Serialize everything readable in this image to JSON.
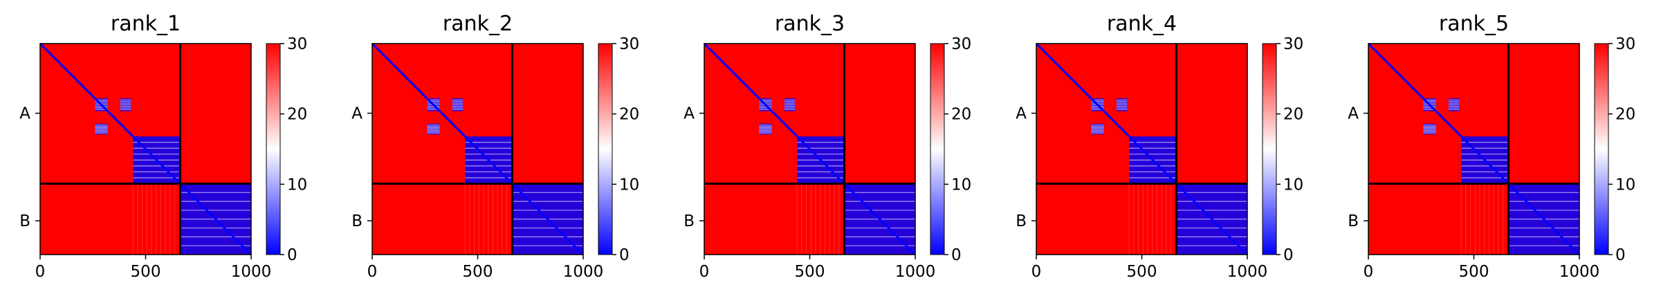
{
  "chart_data": {
    "type": "heatmap",
    "figure_panels": [
      {
        "title": "rank_1"
      },
      {
        "title": "rank_2"
      },
      {
        "title": "rank_3"
      },
      {
        "title": "rank_4"
      },
      {
        "title": "rank_5"
      }
    ],
    "xlim": [
      0,
      1000
    ],
    "x_ticks": [
      "0",
      "500",
      "1000"
    ],
    "x_tick_values": [
      0,
      500,
      1000
    ],
    "y_ticks": [
      "A",
      "B"
    ],
    "y_tick_values": [
      330,
      840
    ],
    "chain_boundary": 664,
    "total_length": 1000,
    "colorbar": {
      "ticks": [
        "0",
        "10",
        "20",
        "30"
      ],
      "tick_values": [
        0,
        10,
        20,
        30
      ],
      "range": [
        0,
        30
      ],
      "colormap": "bwr"
    },
    "low_error_regions": [
      {
        "x": [
          0,
          1000
        ],
        "y": [
          0,
          1000
        ],
        "value": 0,
        "label": "diagonal"
      },
      {
        "x": [
          260,
          320
        ],
        "y": [
          260,
          320
        ],
        "value": 4
      },
      {
        "x": [
          380,
          430
        ],
        "y": [
          260,
          320
        ],
        "value": 4
      },
      {
        "x": [
          260,
          320
        ],
        "y": [
          380,
          430
        ],
        "value": 4
      },
      {
        "x": [
          440,
          664
        ],
        "y": [
          440,
          664
        ],
        "value": 6
      },
      {
        "x": [
          664,
          1000
        ],
        "y": [
          664,
          1000
        ],
        "value": 8
      }
    ],
    "colors": {
      "high": "#ff0000",
      "mid": "#ffffff",
      "low": "#0000ff",
      "divider": "#000000"
    }
  }
}
